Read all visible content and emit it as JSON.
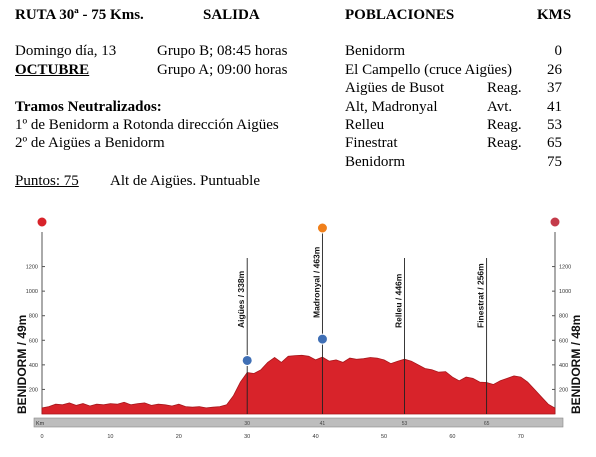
{
  "header": {
    "ruta": "RUTA 30ª - 75 Kms.",
    "salida": "SALIDA",
    "poblaciones": "POBLACIONES",
    "kms": "KMS"
  },
  "info": {
    "date": "Domingo día, 13",
    "month": "OCTUBRE",
    "grupo_b": "Grupo B; 08:45 horas",
    "grupo_a": "Grupo A; 09:00 horas",
    "tramos_title": "Tramos Neutralizados:",
    "tramo1": "1º de Benidorm a Rotonda dirección Aigües",
    "tramo2": "2º de Aigües a Benidorm",
    "puntos": "Puntos: 75",
    "puntuable": "Alt de Aigües.  Puntuable"
  },
  "poblaciones": [
    {
      "name": "Benidorm",
      "tag": "",
      "km": "0"
    },
    {
      "name": "El Campello (cruce Aigües)",
      "tag": "",
      "km": "26"
    },
    {
      "name": "Aigües de Busot",
      "tag": "Reag.",
      "km": "37"
    },
    {
      "name": "Alt,  Madronyal",
      "tag": "Avt.",
      "km": "41"
    },
    {
      "name": "Relleu",
      "tag": "Reag.",
      "km": "53"
    },
    {
      "name": "Finestrat",
      "tag": "Reag.",
      "km": "65"
    },
    {
      "name": "Benidorm",
      "tag": "",
      "km": "75"
    }
  ],
  "chart_data": {
    "type": "area",
    "fill_color": "#d8232a",
    "start_label": "BENIDORM / 49m",
    "end_label": "BENIDORM / 48m",
    "km_unit": "Km",
    "x_ticks": [
      0,
      10,
      20,
      30,
      40,
      50,
      60,
      70
    ],
    "y_ticks": [
      200,
      400,
      600,
      800,
      1000,
      1200
    ],
    "xlim": [
      0,
      75
    ],
    "ylim": [
      0,
      1400
    ],
    "markers": [
      {
        "km": 30,
        "label": "Aigües / 338m",
        "alt": 338
      },
      {
        "km": 41,
        "label": "Madronyal / 463m",
        "alt": 463
      },
      {
        "km": 53,
        "label": "Relleu / 446m",
        "alt": 446
      },
      {
        "km": 65,
        "label": "Finestrat / 256m",
        "alt": 256
      }
    ],
    "x": [
      0,
      1,
      2,
      3,
      4,
      5,
      6,
      7,
      8,
      9,
      10,
      11,
      12,
      13,
      14,
      15,
      16,
      17,
      18,
      19,
      20,
      21,
      22,
      23,
      24,
      25,
      26,
      27,
      28,
      29,
      30,
      31,
      32,
      33,
      34,
      35,
      36,
      37,
      38,
      39,
      40,
      41,
      42,
      43,
      44,
      45,
      46,
      47,
      48,
      49,
      50,
      51,
      52,
      53,
      54,
      55,
      56,
      57,
      58,
      59,
      60,
      61,
      62,
      63,
      64,
      65,
      66,
      67,
      68,
      69,
      70,
      71,
      72,
      73,
      74,
      75
    ],
    "y": [
      49,
      60,
      80,
      75,
      90,
      70,
      85,
      65,
      80,
      75,
      85,
      80,
      95,
      75,
      85,
      90,
      70,
      80,
      75,
      65,
      80,
      60,
      55,
      60,
      50,
      55,
      60,
      75,
      150,
      260,
      338,
      330,
      360,
      420,
      460,
      420,
      470,
      475,
      478,
      470,
      440,
      463,
      430,
      440,
      420,
      455,
      445,
      450,
      460,
      455,
      440,
      410,
      430,
      446,
      430,
      400,
      370,
      360,
      340,
      345,
      300,
      270,
      300,
      290,
      260,
      256,
      240,
      270,
      290,
      310,
      300,
      260,
      200,
      140,
      80,
      48
    ]
  }
}
